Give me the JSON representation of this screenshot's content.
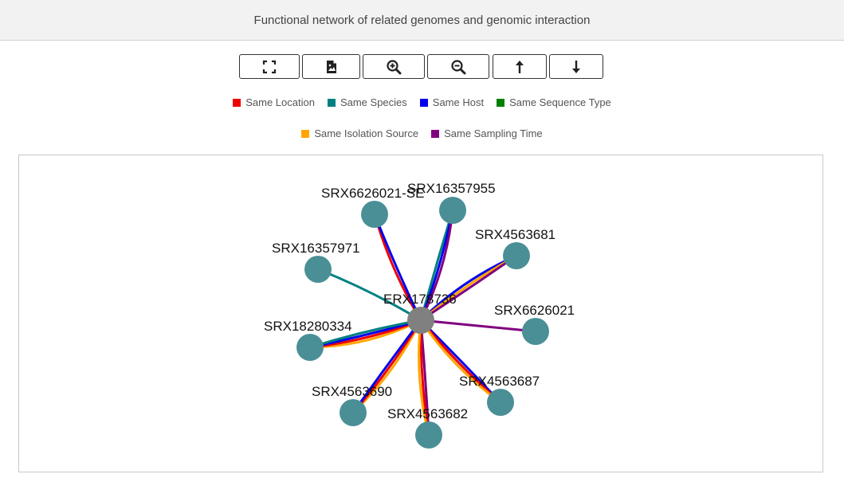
{
  "header": {
    "title": "Functional network of related genomes and genomic interaction"
  },
  "toolbar": {
    "buttons": [
      {
        "icon": "fullscreen-icon"
      },
      {
        "icon": "export-image-icon"
      },
      {
        "icon": "zoom-in-icon"
      },
      {
        "icon": "zoom-out-icon"
      },
      {
        "icon": "arrow-up-icon"
      },
      {
        "icon": "arrow-down-icon"
      }
    ]
  },
  "legend": {
    "items": [
      {
        "label": "Same Location",
        "color": "#ee0000"
      },
      {
        "label": "Same Species",
        "color": "#008080"
      },
      {
        "label": "Same Host",
        "color": "#0000ee"
      },
      {
        "label": "Same Sequence Type",
        "color": "#008000"
      },
      {
        "label": "Same Isolation Source",
        "color": "#ffa500"
      },
      {
        "label": "Same Sampling Time",
        "color": "#800080"
      }
    ]
  },
  "graph": {
    "center": {
      "label": "ERX178736",
      "color": "#808080"
    },
    "node_color": "#4a8f96",
    "nodes": [
      {
        "label": "SRX6626021-SE",
        "relations": [
          "Same Location",
          "Same Host"
        ]
      },
      {
        "label": "SRX16357955",
        "relations": [
          "Same Species",
          "Same Host",
          "Same Sampling Time"
        ]
      },
      {
        "label": "SRX4563681",
        "relations": [
          "Same Host",
          "Same Isolation Source",
          "Same Sampling Time"
        ]
      },
      {
        "label": "SRX16357971",
        "relations": [
          "Same Species"
        ]
      },
      {
        "label": "SRX6626021",
        "relations": [
          "Same Sampling Time"
        ]
      },
      {
        "label": "SRX18280334",
        "relations": [
          "Same Isolation Source",
          "Same Location",
          "Same Host",
          "Same Species"
        ]
      },
      {
        "label": "SRX4563687",
        "relations": [
          "Same Host",
          "Same Location",
          "Same Isolation Source"
        ]
      },
      {
        "label": "SRX4563690",
        "relations": [
          "Same Isolation Source",
          "Same Location",
          "Same Host"
        ]
      },
      {
        "label": "SRX4563682",
        "relations": [
          "Same Sampling Time",
          "Same Location",
          "Same Isolation Source"
        ]
      }
    ]
  }
}
